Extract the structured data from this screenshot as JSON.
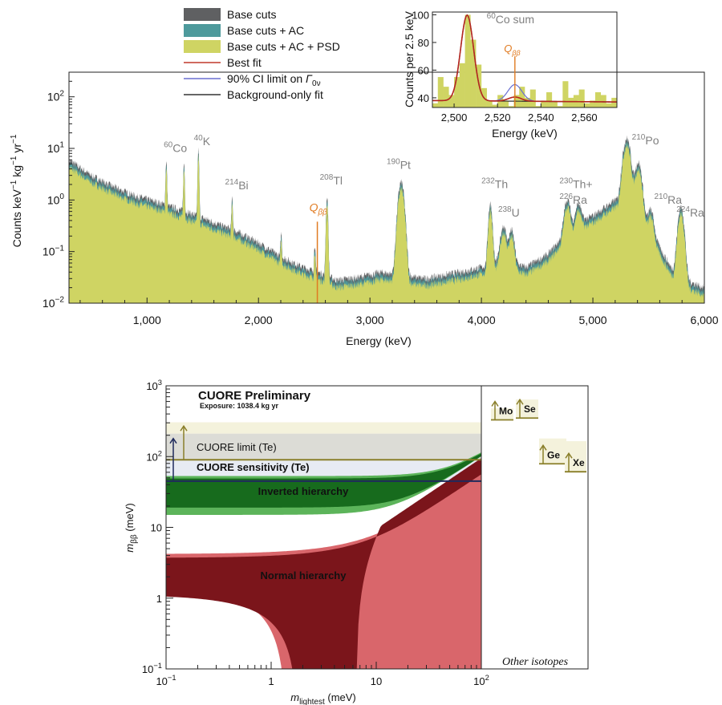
{
  "chart_data": [
    {
      "type": "area",
      "panel": "top",
      "xlabel": "Energy (keV)",
      "ylabel_main": "Counts keV",
      "ylabel_sup1": "−1",
      "ylabel_mid": " kg",
      "ylabel_sup2": "−1",
      "ylabel_tail": " yr",
      "ylabel_sup3": "−1",
      "xlim": [
        300,
        6000
      ],
      "ylim": [
        0.01,
        300
      ],
      "y_scale": "log",
      "x_ticks": [
        {
          "v": 1000,
          "label": "1,000"
        },
        {
          "v": 2000,
          "label": "2,000"
        },
        {
          "v": 3000,
          "label": "3,000"
        },
        {
          "v": 4000,
          "label": "4,000"
        },
        {
          "v": 5000,
          "label": "5,000"
        },
        {
          "v": 6000,
          "label": "6,000"
        }
      ],
      "y_ticks": [
        {
          "v": 0.01,
          "base": "10",
          "exp": "−2"
        },
        {
          "v": 0.1,
          "base": "10",
          "exp": "−1"
        },
        {
          "v": 1,
          "base": "10",
          "exp": "0"
        },
        {
          "v": 10,
          "base": "10",
          "exp": "1"
        },
        {
          "v": 100,
          "base": "10",
          "exp": "2"
        }
      ],
      "legend": [
        {
          "label": "Base cuts",
          "color": "#5f6062",
          "kind": "patch"
        },
        {
          "label": "Base cuts + AC",
          "color": "#4e9a9c",
          "kind": "patch"
        },
        {
          "label": "Base cuts + AC + PSD",
          "color": "#cfd463",
          "kind": "patch"
        },
        {
          "label": "Best fit",
          "color": "#c0392b",
          "kind": "line"
        },
        {
          "label_pre": "90% CI limit on ",
          "label_sym": "Γ",
          "label_sub": "0ν",
          "color": "#6a6fd1",
          "kind": "line"
        },
        {
          "label": "Background-only fit",
          "color": "#333333",
          "kind": "line"
        }
      ],
      "continuum": [
        {
          "x": 300,
          "y": 6.0
        },
        {
          "x": 500,
          "y": 3.0
        },
        {
          "x": 700,
          "y": 1.8
        },
        {
          "x": 900,
          "y": 1.2
        },
        {
          "x": 1100,
          "y": 0.9
        },
        {
          "x": 1300,
          "y": 0.65
        },
        {
          "x": 1500,
          "y": 0.45
        },
        {
          "x": 1800,
          "y": 0.25
        },
        {
          "x": 2000,
          "y": 0.15
        },
        {
          "x": 2200,
          "y": 0.08
        },
        {
          "x": 2400,
          "y": 0.05
        },
        {
          "x": 2615,
          "y": 0.035
        },
        {
          "x": 2700,
          "y": 0.028
        },
        {
          "x": 2900,
          "y": 0.032
        },
        {
          "x": 3100,
          "y": 0.04
        },
        {
          "x": 3500,
          "y": 0.03
        },
        {
          "x": 3800,
          "y": 0.04
        },
        {
          "x": 4000,
          "y": 0.05
        },
        {
          "x": 4200,
          "y": 0.07
        },
        {
          "x": 4400,
          "y": 0.05
        },
        {
          "x": 4600,
          "y": 0.09
        },
        {
          "x": 4800,
          "y": 0.3
        },
        {
          "x": 5000,
          "y": 0.5
        },
        {
          "x": 5200,
          "y": 1.0
        },
        {
          "x": 5500,
          "y": 0.3
        },
        {
          "x": 5700,
          "y": 0.05
        },
        {
          "x": 5800,
          "y": 0.03
        },
        {
          "x": 6000,
          "y": 0.02
        }
      ],
      "peaks": [
        {
          "x": 1173,
          "h": 5.0,
          "w": 5
        },
        {
          "x": 1332,
          "h": 4.5,
          "w": 5
        },
        {
          "x": 1461,
          "h": 9.0,
          "w": 5
        },
        {
          "x": 1764,
          "h": 0.8,
          "w": 5
        },
        {
          "x": 2204,
          "h": 0.15,
          "w": 5
        },
        {
          "x": 2505,
          "h": 0.1,
          "w": 5
        },
        {
          "x": 2615,
          "h": 1.1,
          "w": 7
        },
        {
          "x": 3280,
          "h": 2.2,
          "w": 22
        },
        {
          "x": 4080,
          "h": 0.8,
          "w": 14
        },
        {
          "x": 4198,
          "h": 0.25,
          "w": 22
        },
        {
          "x": 4270,
          "h": 0.2,
          "w": 20
        },
        {
          "x": 4770,
          "h": 0.8,
          "w": 22
        },
        {
          "x": 4870,
          "h": 0.5,
          "w": 22
        },
        {
          "x": 5304,
          "h": 15.0,
          "w": 28
        },
        {
          "x": 5407,
          "h": 5.0,
          "w": 26
        },
        {
          "x": 5520,
          "h": 0.4,
          "w": 22
        },
        {
          "x": 5790,
          "h": 0.7,
          "w": 22
        }
      ],
      "qbb_line": {
        "x": 2528
      },
      "peak_labels": [
        {
          "x": 1150,
          "y": 8.5,
          "mass": "60",
          "el": "Co"
        },
        {
          "x": 1420,
          "y": 11.5,
          "mass": "40",
          "el": "K"
        },
        {
          "x": 1700,
          "y": 1.6,
          "mass": "214",
          "el": "Bi"
        },
        {
          "x": 2550,
          "y": 2.0,
          "mass": "208",
          "el": "Tl"
        },
        {
          "x": 3150,
          "y": 4.0,
          "mass": "190",
          "el": "Pt"
        },
        {
          "x": 4000,
          "y": 1.7,
          "mass": "232",
          "el": "Th"
        },
        {
          "x": 4150,
          "y": 0.48,
          "mass": "238",
          "el": "U"
        },
        {
          "x": 4700,
          "y": 1.7,
          "mass": "230",
          "el": "Th+"
        },
        {
          "x": 4700,
          "y": 0.85,
          "mass": "226",
          "el": "Ra"
        },
        {
          "x": 5350,
          "y": 12.0,
          "mass": "210",
          "el": "Po"
        },
        {
          "x": 5550,
          "y": 0.85,
          "mass": "210",
          "el": "Ra"
        },
        {
          "x": 5750,
          "y": 0.48,
          "mass": "224",
          "el": "Ra"
        }
      ],
      "qbb_label": {
        "main": "Q",
        "sub": "ββ"
      }
    },
    {
      "type": "bar",
      "panel": "inset",
      "xlabel": "Energy (keV)",
      "ylabel": "Counts per 2.5 keV",
      "xlim": [
        2490,
        2575
      ],
      "ylim": [
        33,
        102
      ],
      "x_ticks": [
        {
          "v": 2500,
          "label": "2,500"
        },
        {
          "v": 2520,
          "label": "2,520"
        },
        {
          "v": 2540,
          "label": "2,540"
        },
        {
          "v": 2560,
          "label": "2,560"
        }
      ],
      "y_ticks": [
        {
          "v": 40,
          "label": "40"
        },
        {
          "v": 60,
          "label": "60"
        },
        {
          "v": 80,
          "label": "80"
        },
        {
          "v": 100,
          "label": "100"
        }
      ],
      "bin_width": 2.5,
      "bins_start": 2490,
      "counts": [
        36,
        55,
        48,
        42,
        55,
        65,
        100,
        82,
        64,
        47,
        38,
        35,
        42,
        38,
        34,
        42,
        48,
        40,
        46,
        34,
        38,
        44,
        37,
        34,
        52,
        40,
        42,
        46,
        36,
        38,
        44,
        42,
        36,
        40
      ],
      "best_fit_peak": {
        "x": 2506,
        "amp": 62,
        "sigma": 3.0,
        "bg_left": 38,
        "bg_right": 37
      },
      "qbb_x": 2528,
      "co_label": {
        "mass": "60",
        "text": "Co sum"
      },
      "qbb_label": {
        "main": "Q",
        "sub": "ββ"
      }
    },
    {
      "type": "area",
      "panel": "bottom",
      "xlabel_main": "m",
      "xlabel_sub": "lightest",
      "xlabel_unit": " (meV)",
      "ylabel_main": "m",
      "ylabel_sub": "ββ",
      "ylabel_unit": " (meV)",
      "x_scale": "log",
      "y_scale": "log",
      "xlim": [
        0.1,
        100
      ],
      "ylim": [
        0.1,
        1000
      ],
      "x_ticks": [
        {
          "v": 0.1,
          "base": "10",
          "exp": "−1"
        },
        {
          "v": 1,
          "label": "1"
        },
        {
          "v": 10,
          "label": "10"
        },
        {
          "v": 100,
          "base": "10",
          "exp": "2"
        }
      ],
      "y_ticks": [
        {
          "v": 0.1,
          "base": "10",
          "exp": "−1"
        },
        {
          "v": 1,
          "label": "1"
        },
        {
          "v": 10,
          "label": "10"
        },
        {
          "v": 100,
          "base": "10",
          "exp": "2"
        },
        {
          "v": 1000,
          "base": "10",
          "exp": "3"
        }
      ],
      "title": "CUORE Preliminary",
      "subtitle": "Exposure: 1038.4 kg yr",
      "cuore_limit": {
        "label": "CUORE limit (Te)",
        "y": 90
      },
      "cuore_sensitivity": {
        "label": "CUORE sensitivity (Te)",
        "y": 45
      },
      "band_limit": [
        90,
        305
      ],
      "band_sens": [
        45,
        210
      ],
      "inverted_label": "Inverted hierarchy",
      "normal_label": "Normal hierarchy",
      "other_isotopes_label": "Other isotopes",
      "isotopes": [
        {
          "label": "Mo",
          "low": 330,
          "high": 480
        },
        {
          "label": "Se",
          "low": 350,
          "high": 640
        },
        {
          "label": "Ge",
          "low": 79,
          "high": 180
        },
        {
          "label": "Xe",
          "low": 61,
          "high": 165
        }
      ]
    }
  ]
}
